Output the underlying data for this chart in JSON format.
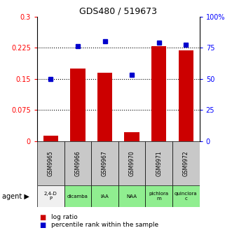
{
  "title": "GDS480 / 519673",
  "categories": [
    "GSM9965",
    "GSM9966",
    "GSM9967",
    "GSM9970",
    "GSM9971",
    "GSM9972"
  ],
  "agents": [
    "2,4-D\nP",
    "dicamba",
    "IAA",
    "NAA",
    "pichlora\nm",
    "quinclora\nc"
  ],
  "agent_colors": [
    "#f0f0f0",
    "#90ee90",
    "#90ee90",
    "#90ee90",
    "#90ee90",
    "#90ee90"
  ],
  "gsm_color": "#c8c8c8",
  "log_ratio": [
    0.012,
    0.175,
    0.165,
    0.022,
    0.228,
    0.218
  ],
  "percentile": [
    50,
    76,
    80,
    53,
    79,
    77
  ],
  "bar_color": "#cc0000",
  "dot_color": "#0000cc",
  "left_ylim": [
    0,
    0.3
  ],
  "right_ylim": [
    0,
    100
  ],
  "left_yticks": [
    0,
    0.075,
    0.15,
    0.225,
    0.3
  ],
  "left_yticklabels": [
    "0",
    "0.075",
    "0.15",
    "0.225",
    "0.3"
  ],
  "right_yticks": [
    0,
    25,
    50,
    75,
    100
  ],
  "right_yticklabels": [
    "0",
    "25",
    "50",
    "75",
    "100%"
  ],
  "hline_values": [
    0.075,
    0.15,
    0.225
  ],
  "legend_log": "log ratio",
  "legend_pct": "percentile rank within the sample"
}
